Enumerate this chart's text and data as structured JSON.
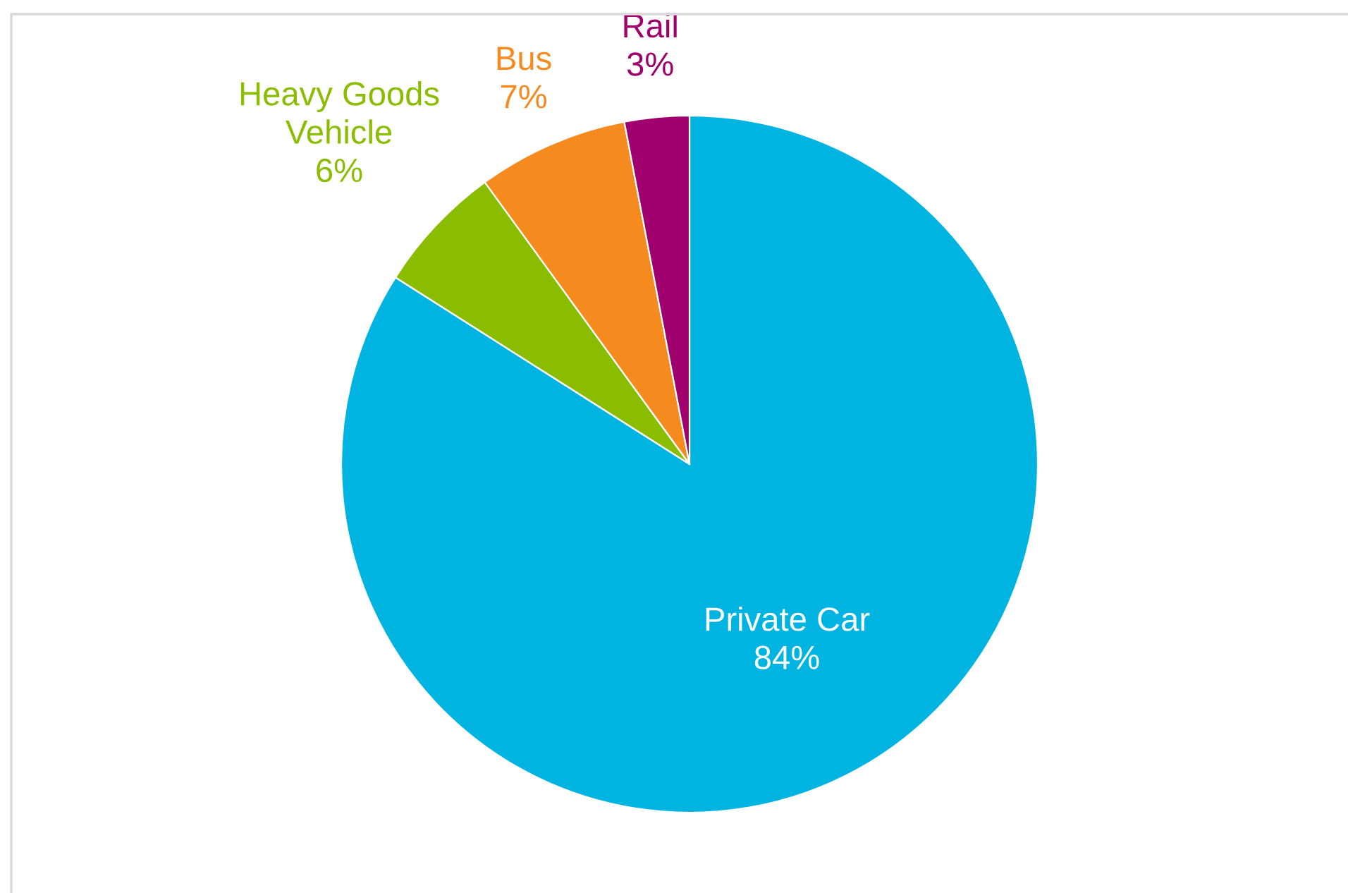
{
  "chart_data": {
    "type": "pie",
    "categories": [
      "Private Car",
      "Heavy Goods\nVehicle",
      "Bus",
      "Rail"
    ],
    "values": [
      84,
      6,
      7,
      3
    ],
    "value_labels": [
      "84%",
      "6%",
      "7%",
      "3%"
    ],
    "colors": [
      "#00b4e1",
      "#8abd00",
      "#f58a1f",
      "#a0006e"
    ],
    "legend": false
  }
}
